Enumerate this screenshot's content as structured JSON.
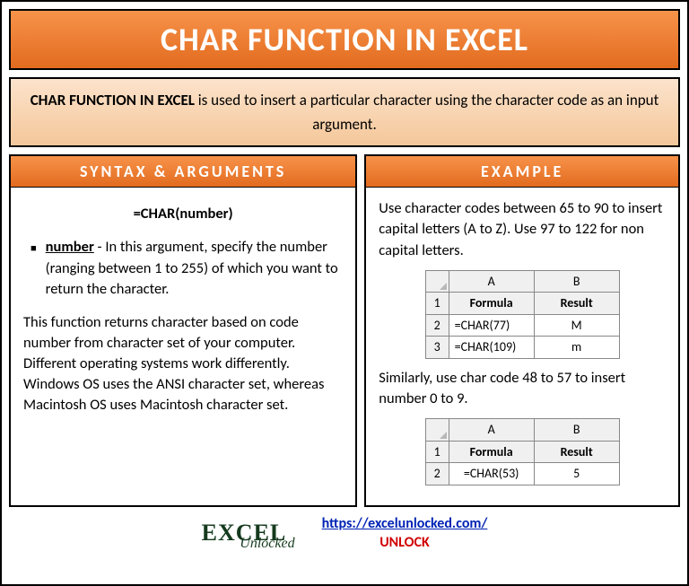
{
  "title": "CHAR FUNCTION IN EXCEL",
  "description_bold": "CHAR FUNCTION IN EXCEL",
  "description_rest": " is used to insert a particular character using the character code as an input argument.",
  "left": {
    "header": "SYNTAX & ARGUMENTS",
    "formula": "=CHAR(number)",
    "arg_name": "number",
    "arg_desc": " - In this argument, specify the number (ranging between 1 to 255) of which you want to return the character.",
    "para": "This function returns character based on code number from character set of your computer. Different operating systems work differently. Windows OS uses the ANSI character set, whereas Macintosh OS uses Macintosh character set."
  },
  "right": {
    "header": "EXAMPLE",
    "intro": "Use character codes between 65 to 90 to insert capital letters (A to Z). Use 97 to 122 for non capital letters.",
    "table1": {
      "cols": [
        "A",
        "B"
      ],
      "head": [
        "Formula",
        "Result"
      ],
      "rows": [
        [
          "=CHAR(77)",
          "M"
        ],
        [
          "=CHAR(109)",
          "m"
        ]
      ]
    },
    "mid": "Similarly, use char code 48 to 57 to insert number 0 to 9.",
    "table2": {
      "cols": [
        "A",
        "B"
      ],
      "head": [
        "Formula",
        "Result"
      ],
      "rows": [
        [
          "=CHAR(53)",
          "5"
        ]
      ]
    }
  },
  "footer": {
    "logo_main": "EXCEL",
    "logo_sub": "Unlocked",
    "url": "https://excelunlocked.com/",
    "unlock": "UNLOCK"
  },
  "colors": {
    "banner_grad_top": "#f7934a",
    "banner_grad_bottom": "#e26b1f",
    "desc_grad_top": "#fce3cc",
    "desc_grad_bottom": "#f4c79a"
  }
}
